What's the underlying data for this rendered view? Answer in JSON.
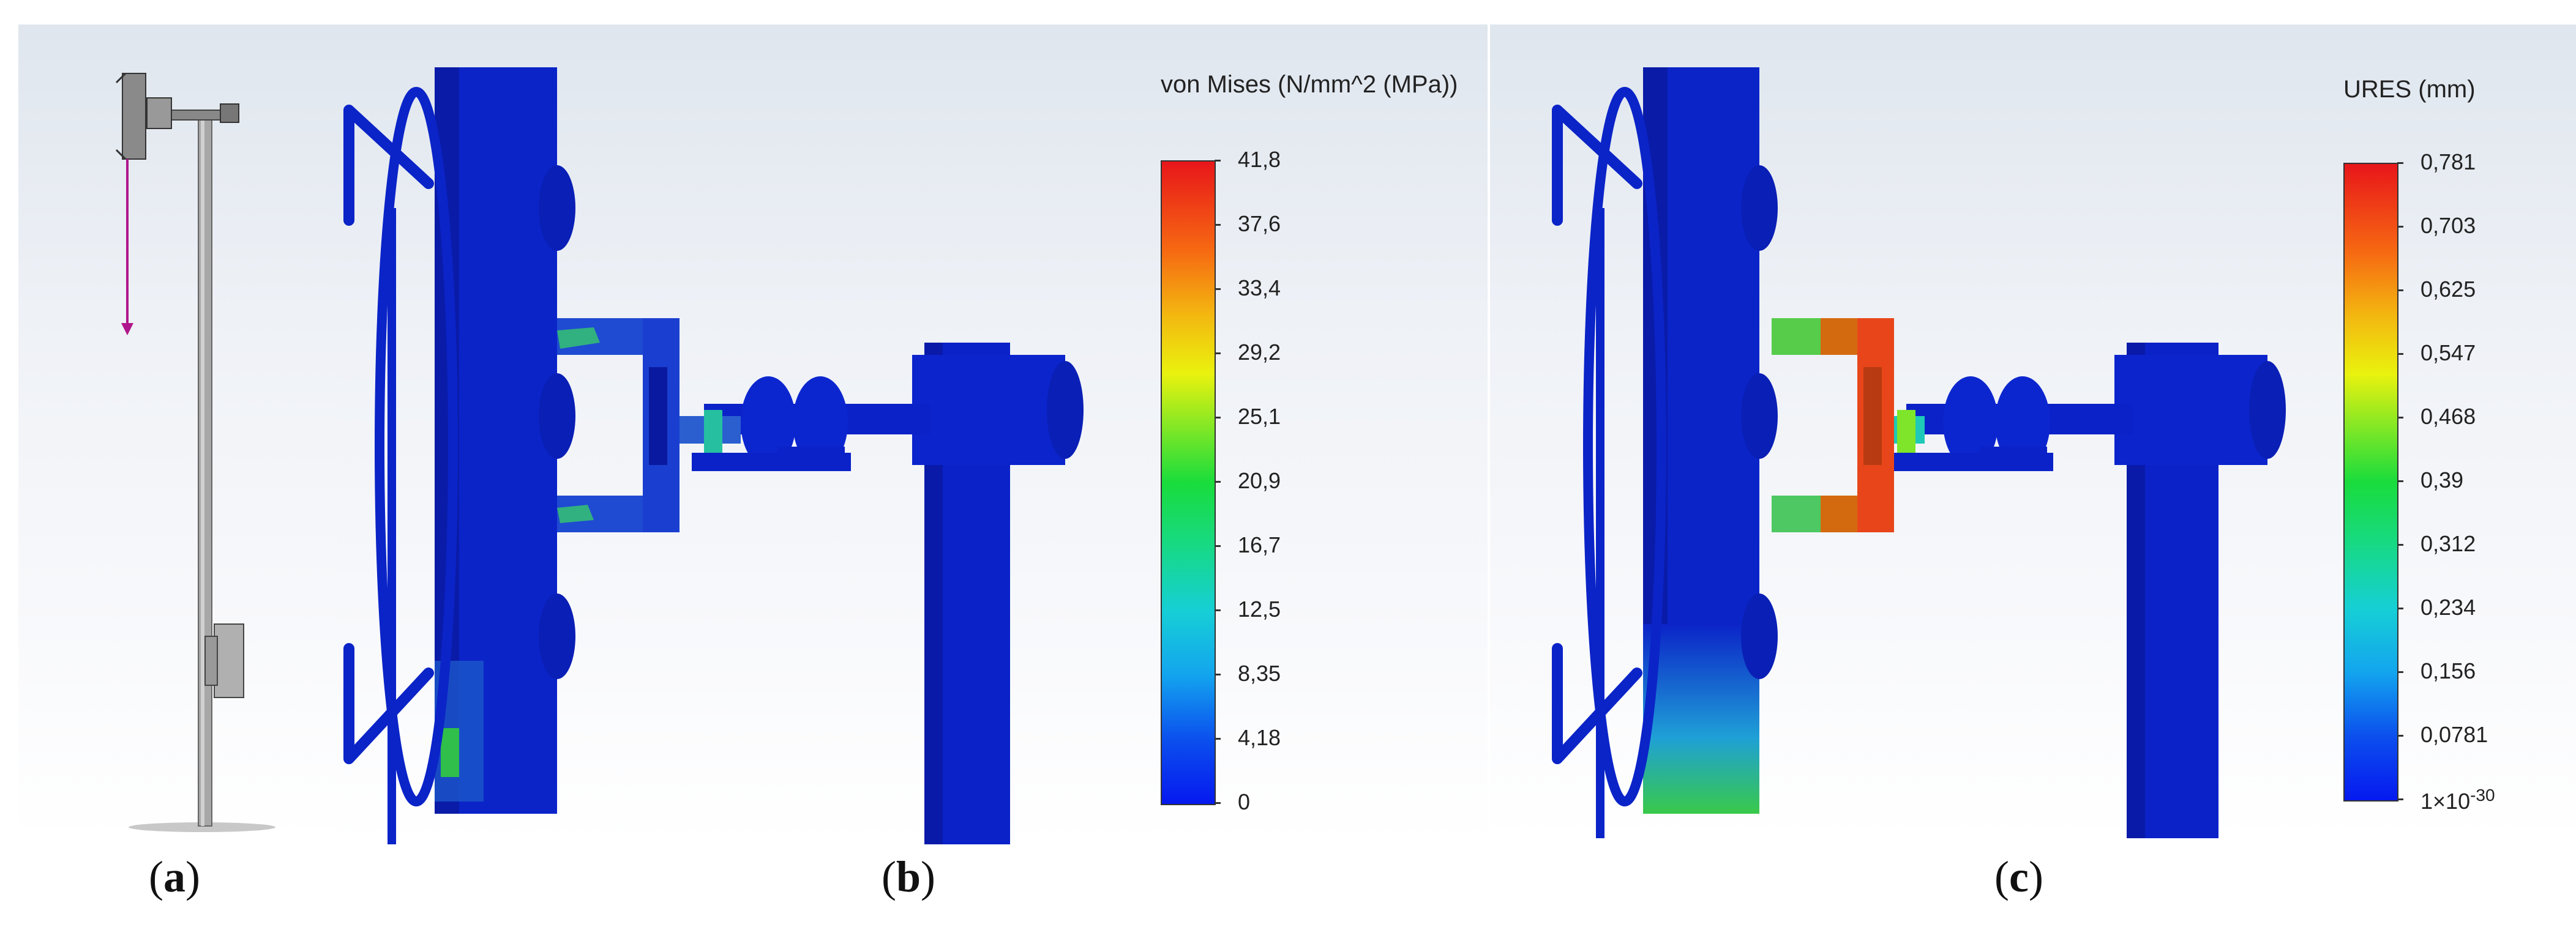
{
  "panels": [
    {
      "id": "a",
      "label": "a"
    },
    {
      "id": "b",
      "label": "b",
      "legend_title": "von Mises (N/mm^2 (MPa))",
      "ticks": [
        "41,8",
        "37,6",
        "33,4",
        "29,2",
        "25,1",
        "20,9",
        "16,7",
        "12,5",
        "8,35",
        "4,18",
        "0"
      ]
    },
    {
      "id": "c",
      "label": "c",
      "legend_title": "URES (mm)",
      "ticks": [
        "0,781",
        "0,703",
        "0,625",
        "0,547",
        "0,468",
        "0,39",
        "0,312",
        "0,234",
        "0,156",
        "0,0781",
        "1×10"
      ],
      "min_exponent": "-30"
    }
  ],
  "colors": {
    "model_blue": "#0a22c8",
    "mesh_blue": "#1433b8",
    "pole_gray": "#9a9a9a",
    "arrow": "#b0168c"
  }
}
